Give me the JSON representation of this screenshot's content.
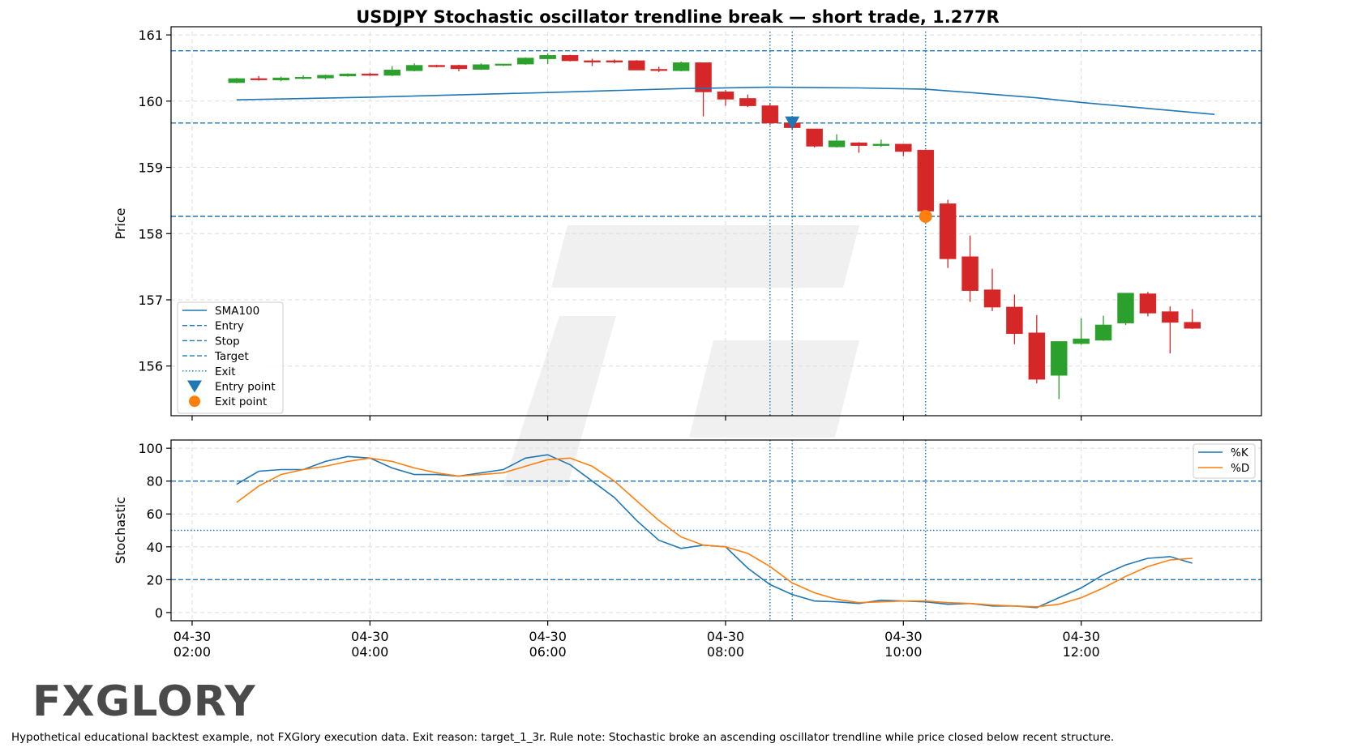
{
  "chart_data": {
    "type": "candlestick",
    "title": "USDJPY Stochastic oscillator trendline break — short trade, 1.277R",
    "footnote": "Hypothetical educational backtest example, not FXGlory execution data. Exit reason: target_1_3r. Rule note: Stochastic broke an ascending oscillator trendline while price closed below recent structure.",
    "logo_text": "FXGLORY",
    "x_axis": {
      "ticks": [
        {
          "date": "04-30",
          "time": "02:00",
          "hour": 2
        },
        {
          "date": "04-30",
          "time": "04:00",
          "hour": 4
        },
        {
          "date": "04-30",
          "time": "06:00",
          "hour": 6
        },
        {
          "date": "04-30",
          "time": "08:00",
          "hour": 8
        },
        {
          "date": "04-30",
          "time": "10:00",
          "hour": 10
        },
        {
          "date": "04-30",
          "time": "12:00",
          "hour": 12
        }
      ],
      "xlim": [
        1.9,
        14.0
      ]
    },
    "price_panel": {
      "ylabel": "Price",
      "ylim": [
        155.25,
        161.05
      ],
      "yticks": [
        156,
        157,
        158,
        159,
        160,
        161
      ],
      "grid": true,
      "legend": {
        "placement": "lower-left",
        "entries": [
          {
            "label": "SMA100",
            "style": "solid",
            "color": "#1f77b4"
          },
          {
            "label": "Entry",
            "style": "dashed",
            "color": "#1f77b4"
          },
          {
            "label": "Stop",
            "style": "dashed",
            "color": "#1f77b4"
          },
          {
            "label": "Target",
            "style": "dashed",
            "color": "#1f77b4"
          },
          {
            "label": "Exit",
            "style": "dotted",
            "color": "#1f77b4"
          },
          {
            "label": "Entry point",
            "style": "triangle-down",
            "color": "#1f77b4"
          },
          {
            "label": "Exit point",
            "style": "circle",
            "color": "#ff7f0e"
          }
        ]
      },
      "levels": {
        "entry": 159.67,
        "stop": 160.76,
        "target": 158.26
      },
      "vlines": [
        8.5,
        8.75,
        10.25
      ],
      "entry_point": {
        "x": 8.75,
        "y": 159.67
      },
      "exit_point": {
        "x": 10.25,
        "y": 158.26
      },
      "candle_width_hours": 0.18,
      "colors": {
        "up": "#2ca02c",
        "down": "#d62728"
      },
      "candles": [
        {
          "t": 2.5,
          "o": 160.28,
          "h": 160.35,
          "l": 160.27,
          "c": 160.34
        },
        {
          "t": 2.75,
          "o": 160.34,
          "h": 160.38,
          "l": 160.31,
          "c": 160.33
        },
        {
          "t": 3.0,
          "o": 160.32,
          "h": 160.37,
          "l": 160.3,
          "c": 160.35
        },
        {
          "t": 3.25,
          "o": 160.35,
          "h": 160.39,
          "l": 160.33,
          "c": 160.36
        },
        {
          "t": 3.5,
          "o": 160.35,
          "h": 160.4,
          "l": 160.33,
          "c": 160.39
        },
        {
          "t": 3.75,
          "o": 160.38,
          "h": 160.42,
          "l": 160.37,
          "c": 160.41
        },
        {
          "t": 4.0,
          "o": 160.41,
          "h": 160.43,
          "l": 160.38,
          "c": 160.39
        },
        {
          "t": 4.25,
          "o": 160.39,
          "h": 160.53,
          "l": 160.38,
          "c": 160.47
        },
        {
          "t": 4.5,
          "o": 160.46,
          "h": 160.57,
          "l": 160.45,
          "c": 160.54
        },
        {
          "t": 4.75,
          "o": 160.54,
          "h": 160.55,
          "l": 160.51,
          "c": 160.52
        },
        {
          "t": 5.0,
          "o": 160.54,
          "h": 160.55,
          "l": 160.45,
          "c": 160.49
        },
        {
          "t": 5.25,
          "o": 160.48,
          "h": 160.57,
          "l": 160.47,
          "c": 160.55
        },
        {
          "t": 5.5,
          "o": 160.55,
          "h": 160.56,
          "l": 160.53,
          "c": 160.56
        },
        {
          "t": 5.75,
          "o": 160.56,
          "h": 160.66,
          "l": 160.55,
          "c": 160.65
        },
        {
          "t": 6.0,
          "o": 160.64,
          "h": 160.72,
          "l": 160.56,
          "c": 160.69
        },
        {
          "t": 6.25,
          "o": 160.69,
          "h": 160.7,
          "l": 160.6,
          "c": 160.61
        },
        {
          "t": 6.5,
          "o": 160.61,
          "h": 160.64,
          "l": 160.53,
          "c": 160.59
        },
        {
          "t": 6.75,
          "o": 160.61,
          "h": 160.63,
          "l": 160.57,
          "c": 160.59
        },
        {
          "t": 7.0,
          "o": 160.61,
          "h": 160.62,
          "l": 160.47,
          "c": 160.47
        },
        {
          "t": 7.25,
          "o": 160.48,
          "h": 160.52,
          "l": 160.44,
          "c": 160.47
        },
        {
          "t": 7.5,
          "o": 160.46,
          "h": 160.6,
          "l": 160.45,
          "c": 160.58
        },
        {
          "t": 7.75,
          "o": 160.58,
          "h": 160.58,
          "l": 159.77,
          "c": 160.14
        },
        {
          "t": 8.0,
          "o": 160.14,
          "h": 160.17,
          "l": 159.93,
          "c": 160.03
        },
        {
          "t": 8.25,
          "o": 160.04,
          "h": 160.1,
          "l": 159.91,
          "c": 159.93
        },
        {
          "t": 8.5,
          "o": 159.93,
          "h": 159.96,
          "l": 159.64,
          "c": 159.67
        },
        {
          "t": 8.75,
          "o": 159.67,
          "h": 159.72,
          "l": 159.57,
          "c": 159.6
        },
        {
          "t": 9.0,
          "o": 159.58,
          "h": 159.58,
          "l": 159.3,
          "c": 159.32
        },
        {
          "t": 9.25,
          "o": 159.31,
          "h": 159.5,
          "l": 159.3,
          "c": 159.4
        },
        {
          "t": 9.5,
          "o": 159.37,
          "h": 159.38,
          "l": 159.22,
          "c": 159.33
        },
        {
          "t": 9.75,
          "o": 159.33,
          "h": 159.42,
          "l": 159.31,
          "c": 159.35
        },
        {
          "t": 10.0,
          "o": 159.35,
          "h": 159.35,
          "l": 159.17,
          "c": 159.24
        },
        {
          "t": 10.25,
          "o": 159.26,
          "h": 159.26,
          "l": 158.31,
          "c": 158.34
        },
        {
          "t": 10.5,
          "o": 158.45,
          "h": 158.51,
          "l": 157.48,
          "c": 157.62
        },
        {
          "t": 10.75,
          "o": 157.65,
          "h": 157.97,
          "l": 156.97,
          "c": 157.14
        },
        {
          "t": 11.0,
          "o": 157.15,
          "h": 157.47,
          "l": 156.83,
          "c": 156.89
        },
        {
          "t": 11.25,
          "o": 156.89,
          "h": 157.08,
          "l": 156.33,
          "c": 156.49
        },
        {
          "t": 11.5,
          "o": 156.5,
          "h": 156.77,
          "l": 155.74,
          "c": 155.8
        },
        {
          "t": 11.75,
          "o": 155.86,
          "h": 156.37,
          "l": 155.5,
          "c": 156.37
        },
        {
          "t": 12.0,
          "o": 156.34,
          "h": 156.72,
          "l": 156.32,
          "c": 156.41
        },
        {
          "t": 12.25,
          "o": 156.39,
          "h": 156.76,
          "l": 156.38,
          "c": 156.62
        },
        {
          "t": 12.5,
          "o": 156.65,
          "h": 157.1,
          "l": 156.62,
          "c": 157.1
        },
        {
          "t": 12.75,
          "o": 157.09,
          "h": 157.12,
          "l": 156.75,
          "c": 156.8
        },
        {
          "t": 13.0,
          "o": 156.82,
          "h": 156.9,
          "l": 156.19,
          "c": 156.66
        },
        {
          "t": 13.25,
          "o": 156.66,
          "h": 156.86,
          "l": 156.56,
          "c": 156.57
        }
      ],
      "sma100": {
        "name": "SMA100",
        "points": [
          [
            2.5,
            160.02
          ],
          [
            4.0,
            160.06
          ],
          [
            6.0,
            160.13
          ],
          [
            7.5,
            160.19
          ],
          [
            8.5,
            160.21
          ],
          [
            9.5,
            160.2
          ],
          [
            10.25,
            160.18
          ],
          [
            10.75,
            160.13
          ],
          [
            11.5,
            160.05
          ],
          [
            12.0,
            159.98
          ],
          [
            12.75,
            159.89
          ],
          [
            13.5,
            159.8
          ]
        ]
      }
    },
    "stochastic_panel": {
      "ylabel": "Stochastic",
      "ylim": [
        -5,
        105
      ],
      "yticks": [
        0,
        20,
        40,
        60,
        80,
        100
      ],
      "grid": true,
      "levels": {
        "upper": 80,
        "mid": 50,
        "lower": 20
      },
      "vlines": [
        8.5,
        8.75,
        10.25
      ],
      "legend": {
        "placement": "top-right"
      },
      "series": [
        {
          "name": "%K",
          "color": "#1f77b4",
          "x": [
            2.5,
            2.75,
            3.0,
            3.25,
            3.5,
            3.75,
            4.0,
            4.25,
            4.5,
            4.75,
            5.0,
            5.25,
            5.5,
            5.75,
            6.0,
            6.25,
            6.5,
            6.75,
            7.0,
            7.25,
            7.5,
            7.75,
            8.0,
            8.25,
            8.5,
            8.75,
            9.0,
            9.25,
            9.5,
            9.75,
            10.0,
            10.25,
            10.5,
            10.75,
            11.0,
            11.25,
            11.5,
            11.75,
            12.0,
            12.25,
            12.5,
            12.75,
            13.0,
            13.25
          ],
          "values": [
            78,
            86,
            87,
            87,
            92,
            95,
            94,
            88,
            84,
            84,
            83,
            85,
            87,
            94,
            96,
            90,
            80,
            70,
            56,
            44,
            39,
            41,
            40,
            27,
            17,
            11,
            7,
            6.5,
            5.5,
            7.5,
            7,
            6.5,
            5,
            5.5,
            4,
            4,
            3,
            9,
            15,
            23,
            29,
            33,
            34,
            30
          ]
        },
        {
          "name": "%D",
          "color": "#ff7f0e",
          "x": [
            2.5,
            2.75,
            3.0,
            3.25,
            3.5,
            3.75,
            4.0,
            4.25,
            4.5,
            4.75,
            5.0,
            5.25,
            5.5,
            5.75,
            6.0,
            6.25,
            6.5,
            6.75,
            7.0,
            7.25,
            7.5,
            7.75,
            8.0,
            8.25,
            8.5,
            8.75,
            9.0,
            9.25,
            9.5,
            9.75,
            10.0,
            10.25,
            10.5,
            10.75,
            11.0,
            11.25,
            11.5,
            11.75,
            12.0,
            12.25,
            12.5,
            12.75,
            13.0,
            13.25
          ],
          "values": [
            67,
            77,
            84,
            87,
            89,
            92,
            94,
            92,
            88,
            85,
            83,
            84,
            85,
            89,
            93,
            94,
            89,
            80,
            68,
            56,
            46,
            41,
            40,
            36,
            28,
            18,
            12,
            8,
            6,
            6.5,
            7,
            7,
            6,
            5.5,
            4.5,
            4,
            3.5,
            5,
            9,
            15,
            22,
            28,
            32,
            33
          ]
        }
      ]
    }
  }
}
